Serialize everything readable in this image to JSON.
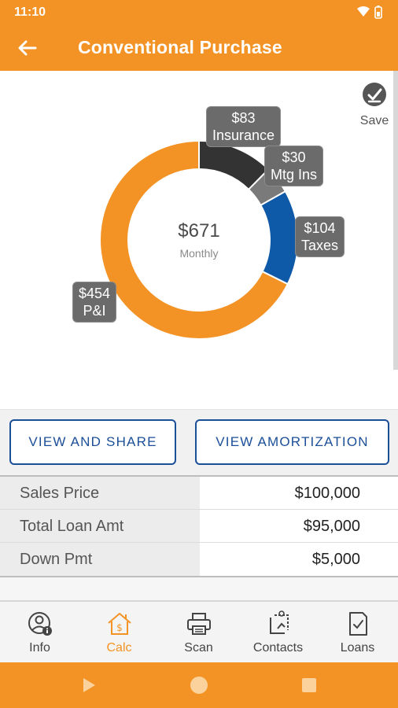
{
  "status": {
    "time": "11:10"
  },
  "appbar": {
    "title": "Conventional Purchase"
  },
  "save": {
    "label": "Save"
  },
  "chart": {
    "center_value": "$671",
    "center_label": "Monthly",
    "segments": [
      {
        "name": "P&I",
        "value": 454,
        "amount": "$454",
        "label": "P&I",
        "color": "#f39325"
      },
      {
        "name": "Insurance",
        "value": 83,
        "amount": "$83",
        "label": "Insurance",
        "color": "#333333"
      },
      {
        "name": "Mtg Ins",
        "value": 30,
        "amount": "$30",
        "label": "Mtg Ins",
        "color": "#7a7a7a"
      },
      {
        "name": "Taxes",
        "value": 104,
        "amount": "$104",
        "label": "Taxes",
        "color": "#0f5aa8"
      }
    ]
  },
  "buttons": {
    "view_share": "VIEW AND SHARE",
    "view_amortization": "VIEW AMORTIZATION"
  },
  "summary": [
    {
      "label": "Sales Price",
      "value": "$100,000"
    },
    {
      "label": "Total Loan Amt",
      "value": "$95,000"
    },
    {
      "label": "Down Pmt",
      "value": "$5,000"
    }
  ],
  "nav": [
    {
      "label": "Info",
      "icon": "person-info-icon",
      "active": false
    },
    {
      "label": "Calc",
      "icon": "house-dollar-icon",
      "active": true
    },
    {
      "label": "Scan",
      "icon": "printer-icon",
      "active": false
    },
    {
      "label": "Contacts",
      "icon": "contacts-icon",
      "active": false
    },
    {
      "label": "Loans",
      "icon": "loan-document-icon",
      "active": false
    }
  ],
  "colors": {
    "brand": "#f39325",
    "primary_blue": "#1b4f98"
  }
}
